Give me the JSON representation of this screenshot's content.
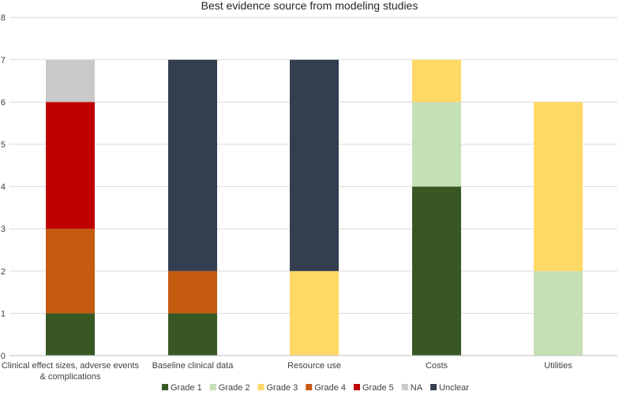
{
  "chart_data": {
    "type": "bar",
    "stacked": true,
    "title": "Best evidence source from modeling studies",
    "xlabel": "",
    "ylabel": "",
    "ylim": [
      0,
      8
    ],
    "yticks": [
      "0",
      "1",
      "2",
      "3",
      "4",
      "5",
      "6",
      "7",
      "8"
    ],
    "grid": true,
    "legend_position": "bottom",
    "categories": [
      [
        "Clinical effect sizes, adverse events",
        "& complications"
      ],
      [
        "Baseline clinical data"
      ],
      [
        "Resource use"
      ],
      [
        "Costs"
      ],
      [
        "Utilities"
      ]
    ],
    "series": [
      {
        "name": "Grade 1",
        "color": "#385723",
        "values": [
          1,
          1,
          0,
          4,
          0
        ]
      },
      {
        "name": "Grade 2",
        "color": "#C5E0B4",
        "values": [
          0,
          0,
          0,
          2,
          2
        ]
      },
      {
        "name": "Grade 3",
        "color": "#FFD966",
        "values": [
          0,
          0,
          2,
          1,
          4
        ]
      },
      {
        "name": "Grade 4",
        "color": "#C55A11",
        "values": [
          2,
          1,
          0,
          0,
          0
        ]
      },
      {
        "name": "Grade 5",
        "color": "#C00000",
        "values": [
          3,
          0,
          0,
          0,
          0
        ]
      },
      {
        "name": "NA",
        "color": "#C9C9C9",
        "values": [
          1,
          0,
          0,
          0,
          0
        ]
      },
      {
        "name": "Unclear",
        "color": "#333F50",
        "values": [
          0,
          5,
          5,
          0,
          0
        ]
      }
    ]
  }
}
